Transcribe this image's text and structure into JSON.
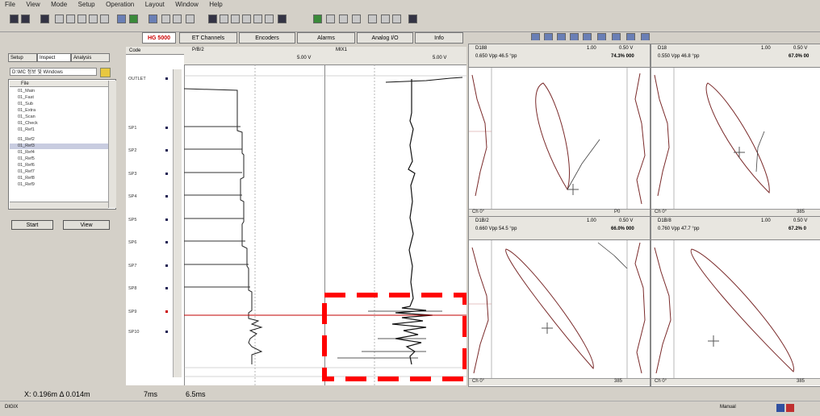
{
  "menu": [
    "File",
    "View",
    "Mode",
    "Setup",
    "Operation",
    "Layout",
    "Window",
    "Help"
  ],
  "tabs": {
    "mode_badge": "HG 5000",
    "items": [
      "ET Channels",
      "Encoders",
      "Alarms",
      "Analog I/O",
      "Info"
    ]
  },
  "left_panel": {
    "tabs": [
      "Setup",
      "Inspect",
      "Analysis"
    ],
    "path": "D:\\MC 정보 및 Windows",
    "file_header": "File",
    "items": [
      "01_Main",
      "01_Fast",
      "01_Sub",
      "01_Extra",
      "01_Scan",
      "01_Check",
      "01_Ref1",
      "01_Ref2",
      "01_Ref3",
      "01_Ref4",
      "01_Ref5",
      "01_Ref6",
      "01_Ref7",
      "01_Ref8",
      "01_Ref9"
    ],
    "start_button": "Start",
    "view_button": "View"
  },
  "code_column": {
    "header": "Code",
    "labels": [
      "OUTLET",
      "SP1",
      "SP2",
      "SP3",
      "SP4",
      "SP5",
      "SP6",
      "SP7",
      "SP8",
      "SP9",
      "SP10"
    ]
  },
  "strip1": {
    "header_name": "P/B/2",
    "header_value": "5.00 V"
  },
  "strip2": {
    "header_name": "MIX1",
    "header_value": "5.00 V"
  },
  "lissajous": [
    {
      "name": "D188",
      "gain": "1.00",
      "span": "0.50 V",
      "line2": "0.650 Vpp  46.5 °pp",
      "pct": "74.3% 000",
      "footer_left": "Ch 0°",
      "footer_right": "P0"
    },
    {
      "name": "D18",
      "gain": "1.00",
      "span": "0.50 V",
      "line2": "0.550 Vpp  46.8 °pp",
      "pct": "67.0% 00",
      "footer_left": "Ch 0°",
      "footer_right": "385"
    },
    {
      "name": "D1B/2",
      "gain": "1.00",
      "span": "0.50 V",
      "line2": "0.660 Vpp  54.5 °pp",
      "pct": "66.0% 000",
      "footer_left": "Ch 0°",
      "footer_right": "385"
    },
    {
      "name": "D1B/8",
      "gain": "1.00",
      "span": "0.50 V",
      "line2": "0.760 Vpp  47.7 °pp",
      "pct": "67.2% 0",
      "footer_left": "Ch 0°",
      "footer_right": "385"
    }
  ],
  "status": {
    "coords": "X: 0.196m  Δ 0.014m",
    "time1": "7ms",
    "time2": "6.5ms"
  },
  "statusbar": {
    "left": "DIGIX",
    "right": "Manual"
  },
  "colors": {
    "accent": "#c00000",
    "highlight_box": "#ff0000",
    "trace": "#000000",
    "lissajous_curve": "#7a2a2a"
  }
}
